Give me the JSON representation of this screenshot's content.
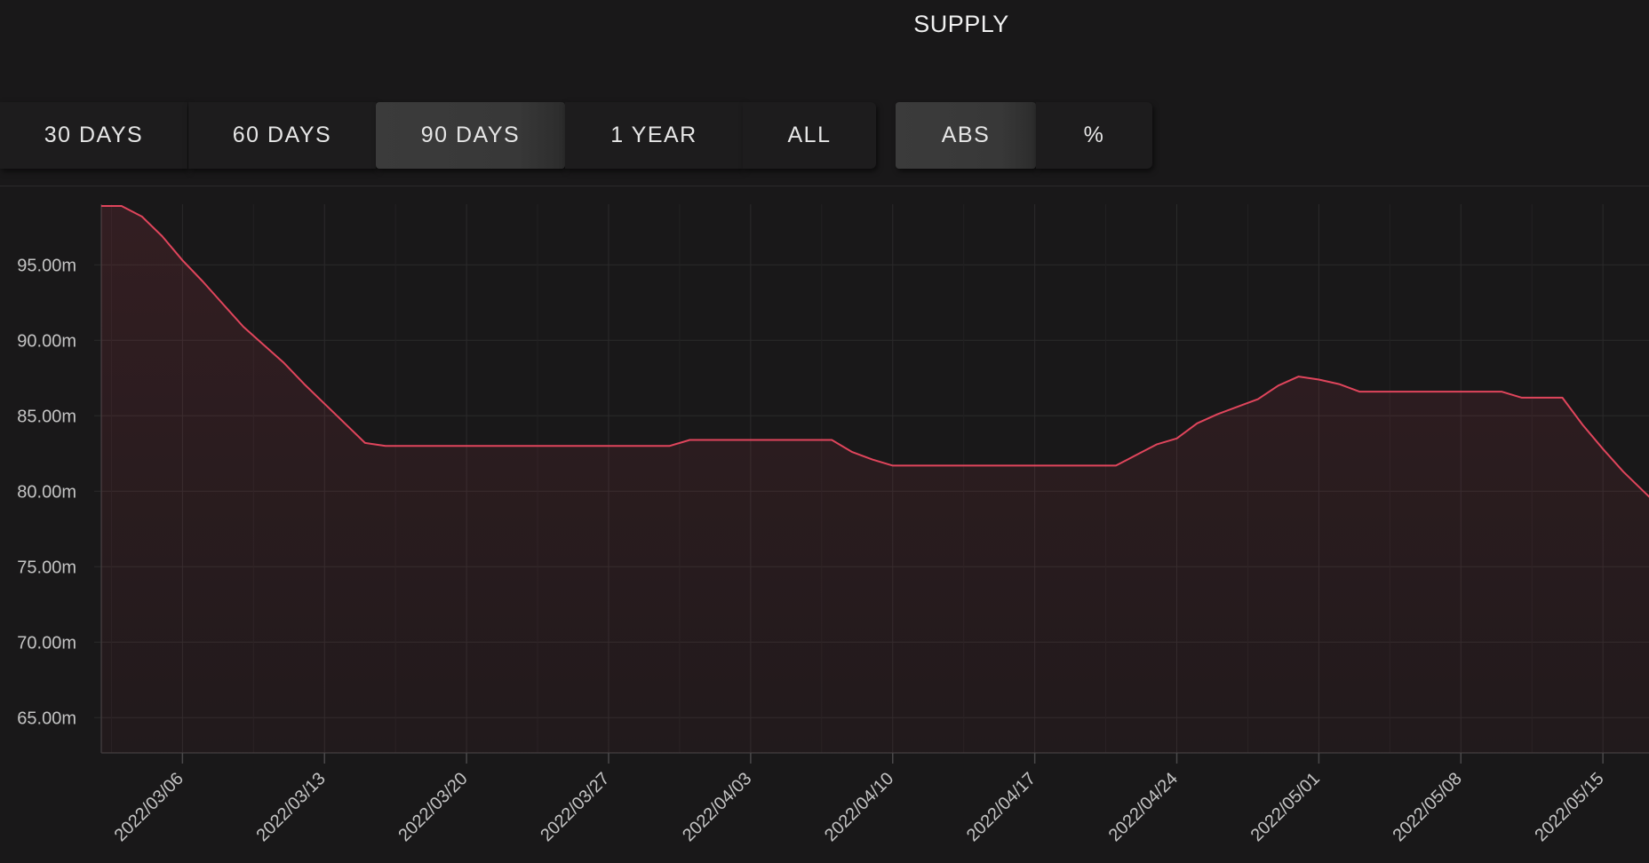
{
  "title": "SUPPLY",
  "range_buttons": [
    {
      "label": "30 DAYS",
      "active": false
    },
    {
      "label": "60 DAYS",
      "active": false
    },
    {
      "label": "90 DAYS",
      "active": true
    },
    {
      "label": "1 YEAR",
      "active": false
    },
    {
      "label": "ALL",
      "active": false
    }
  ],
  "mode_buttons": [
    {
      "label": "ABS",
      "active": true
    },
    {
      "label": "%",
      "active": false
    }
  ],
  "colors": {
    "line": "#e0455c",
    "background": "#191819",
    "grid": "#2b2a2b",
    "active_button": "#3a3a3a"
  },
  "chart_data": {
    "type": "area",
    "title": "",
    "xlabel": "",
    "ylabel": "",
    "grid": true,
    "ylim": [
      62.5,
      98.9
    ],
    "y_ticks": [
      65,
      70,
      75,
      80,
      85,
      90,
      95
    ],
    "y_tick_labels": [
      "65.00m",
      "70.00m",
      "75.00m",
      "80.00m",
      "85.00m",
      "90.00m",
      "95.00m"
    ],
    "x_ticks": [
      "2022/03/06",
      "2022/03/13",
      "2022/03/20",
      "2022/03/27",
      "2022/04/03",
      "2022/04/10",
      "2022/04/17",
      "2022/04/24",
      "2022/05/01",
      "2022/05/08",
      "2022/05/15"
    ],
    "x_range": [
      "2022/03/02",
      "2022/05/18"
    ],
    "series": [
      {
        "unit": "m",
        "points": [
          [
            "2022/03/02",
            98.9
          ],
          [
            "2022/03/03",
            98.9
          ],
          [
            "2022/03/04",
            98.2
          ],
          [
            "2022/03/05",
            96.9
          ],
          [
            "2022/03/06",
            95.3
          ],
          [
            "2022/03/07",
            93.9
          ],
          [
            "2022/03/08",
            92.4
          ],
          [
            "2022/03/09",
            90.9
          ],
          [
            "2022/03/10",
            89.7
          ],
          [
            "2022/03/11",
            88.5
          ],
          [
            "2022/03/12",
            87.1
          ],
          [
            "2022/03/13",
            85.8
          ],
          [
            "2022/03/14",
            84.5
          ],
          [
            "2022/03/15",
            83.2
          ],
          [
            "2022/03/16",
            83.0
          ],
          [
            "2022/03/23",
            83.0
          ],
          [
            "2022/03/30",
            83.0
          ],
          [
            "2022/03/31",
            83.4
          ],
          [
            "2022/04/07",
            83.4
          ],
          [
            "2022/04/08",
            82.6
          ],
          [
            "2022/04/09",
            82.1
          ],
          [
            "2022/04/10",
            81.7
          ],
          [
            "2022/04/17",
            81.7
          ],
          [
            "2022/04/21",
            81.7
          ],
          [
            "2022/04/22",
            82.4
          ],
          [
            "2022/04/23",
            83.1
          ],
          [
            "2022/04/24",
            83.5
          ],
          [
            "2022/04/25",
            84.5
          ],
          [
            "2022/04/26",
            85.1
          ],
          [
            "2022/04/27",
            85.6
          ],
          [
            "2022/04/28",
            86.1
          ],
          [
            "2022/04/29",
            87.0
          ],
          [
            "2022/04/30",
            87.6
          ],
          [
            "2022/05/01",
            87.4
          ],
          [
            "2022/05/02",
            87.1
          ],
          [
            "2022/05/03",
            86.6
          ],
          [
            "2022/05/10",
            86.6
          ],
          [
            "2022/05/11",
            86.2
          ],
          [
            "2022/05/13",
            86.2
          ],
          [
            "2022/05/14",
            84.4
          ],
          [
            "2022/05/15",
            82.8
          ],
          [
            "2022/05/16",
            81.3
          ],
          [
            "2022/05/17",
            80.0
          ],
          [
            "2022/05/18",
            78.7
          ]
        ]
      }
    ]
  }
}
